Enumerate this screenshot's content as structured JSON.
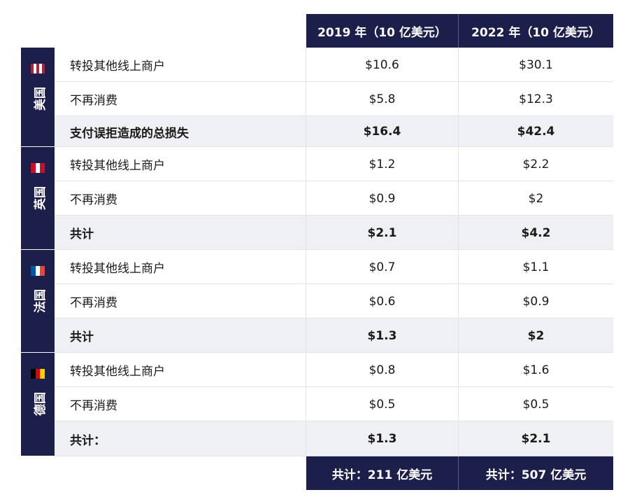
{
  "header": {
    "columns": [
      "2019 年（10 亿美元）",
      "2022 年（10 亿美元）"
    ]
  },
  "groups": [
    {
      "country": "美国",
      "rows": [
        {
          "label": "转投其他线上商户",
          "values": [
            "$10.6",
            "$30.1"
          ]
        },
        {
          "label": "不再消费",
          "values": [
            "$5.8",
            "$12.3"
          ]
        },
        {
          "label": "支付误拒造成的总损失",
          "values": [
            "$16.4",
            "$42.4"
          ]
        }
      ]
    },
    {
      "country": "英国",
      "rows": [
        {
          "label": "转投其他线上商户",
          "values": [
            "$1.2",
            "$2.2"
          ]
        },
        {
          "label": "不再消费",
          "values": [
            "$0.9",
            "$2"
          ]
        },
        {
          "label": "共计",
          "values": [
            "$2.1",
            "$4.2"
          ]
        }
      ]
    },
    {
      "country": "法国",
      "rows": [
        {
          "label": "转投其他线上商户",
          "values": [
            "$0.7",
            "$1.1"
          ]
        },
        {
          "label": "不再消费",
          "values": [
            "$0.6",
            "$0.9"
          ]
        },
        {
          "label": "共计",
          "values": [
            "$1.3",
            "$2"
          ]
        }
      ]
    },
    {
      "country": "德国",
      "rows": [
        {
          "label": "转投其他线上商户",
          "values": [
            "$0.8",
            "$1.6"
          ]
        },
        {
          "label": "不再消费",
          "values": [
            "$0.5",
            "$0.5"
          ]
        },
        {
          "label": "共计：",
          "values": [
            "$1.3",
            "$2.1"
          ]
        }
      ]
    }
  ],
  "footer": [
    "共计：211 亿美元",
    "共计：507 亿美元"
  ]
}
